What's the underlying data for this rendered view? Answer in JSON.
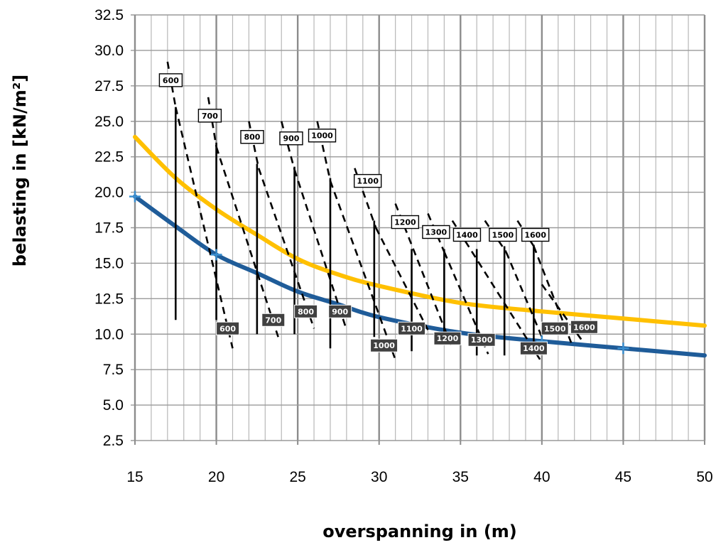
{
  "chart_data": {
    "type": "line",
    "xlabel": "overspanning in (m)",
    "ylabel": "belasting in [kN/m²]",
    "xlim": [
      15,
      50
    ],
    "ylim": [
      2.5,
      32.5
    ],
    "x_ticks": [
      "15",
      "20",
      "25",
      "30",
      "35",
      "40",
      "45",
      "50"
    ],
    "y_ticks": [
      "2.5",
      "5.0",
      "7.5",
      "10.0",
      "12.5",
      "15.0",
      "17.5",
      "20.0",
      "22.5",
      "25.0",
      "27.5",
      "30.0",
      "32.5"
    ],
    "grid": true,
    "colors": {
      "series_1": "#FFC000",
      "series_2": "#1F5C99",
      "markers": "#3A8FD0",
      "diagonals": "#000000"
    },
    "series": [
      {
        "x": [
          15,
          17.5,
          20,
          22.5,
          25,
          27.5,
          30,
          35,
          40,
          45,
          50
        ],
        "values": [
          23.9,
          21.0,
          18.8,
          17.0,
          15.3,
          14.2,
          13.4,
          12.2,
          11.6,
          11.1,
          10.6
        ]
      },
      {
        "x": [
          15,
          17.5,
          20,
          22.5,
          25,
          27.5,
          30,
          35,
          40,
          45,
          50
        ],
        "values": [
          19.7,
          17.6,
          15.6,
          14.3,
          13.0,
          12.1,
          11.2,
          10.1,
          9.5,
          9.0,
          8.5
        ]
      }
    ],
    "markers": [
      {
        "x": 15,
        "y": 19.7
      },
      {
        "x": 20,
        "y": 15.6
      },
      {
        "x": 40,
        "y": 9.5
      },
      {
        "x": 45,
        "y": 9.0
      }
    ],
    "verticals": [
      {
        "x": 17.5,
        "y1": 11.0,
        "y2": 26.0
      },
      {
        "x": 20.0,
        "y1": 11.0,
        "y2": 23.5
      },
      {
        "x": 22.5,
        "y1": 10.0,
        "y2": 22.0
      },
      {
        "x": 24.8,
        "y1": 10.0,
        "y2": 21.8
      },
      {
        "x": 27.0,
        "y1": 9.0,
        "y2": 21.0
      },
      {
        "x": 29.7,
        "y1": 9.8,
        "y2": 18.0
      },
      {
        "x": 32.0,
        "y1": 8.8,
        "y2": 16.0
      },
      {
        "x": 34.0,
        "y1": 9.4,
        "y2": 16.0
      },
      {
        "x": 36.0,
        "y1": 8.5,
        "y2": 16.0
      },
      {
        "x": 37.7,
        "y1": 8.5,
        "y2": 16.2
      },
      {
        "x": 39.5,
        "y1": 8.7,
        "y2": 16.3
      }
    ],
    "dashed_lines": [
      {
        "x1": 17.5,
        "y1": 26.0,
        "x2": 21.0,
        "y2": 9.0
      },
      {
        "x1": 20.0,
        "y1": 23.2,
        "x2": 23.8,
        "y2": 9.8
      },
      {
        "x1": 22.6,
        "y1": 21.7,
        "x2": 26.0,
        "y2": 10.4
      },
      {
        "x1": 24.8,
        "y1": 21.6,
        "x2": 28.0,
        "y2": 10.3
      },
      {
        "x1": 27.0,
        "y1": 20.8,
        "x2": 31.0,
        "y2": 8.2
      },
      {
        "x1": 29.8,
        "y1": 17.5,
        "x2": 33.0,
        "y2": 10.3
      },
      {
        "x1": 31.0,
        "y1": 19.2,
        "x2": 34.5,
        "y2": 9.0
      },
      {
        "x1": 34.0,
        "y1": 15.8,
        "x2": 36.7,
        "y2": 8.6
      },
      {
        "x1": 34.5,
        "y1": 18.0,
        "x2": 40.0,
        "y2": 8.0
      },
      {
        "x1": 37.8,
        "y1": 15.8,
        "x2": 40.0,
        "y2": 9.8
      },
      {
        "x1": 39.5,
        "y1": 16.2,
        "x2": 41.8,
        "y2": 9.4
      },
      {
        "x1": 22.0,
        "y1": 25.0,
        "x2": 22.6,
        "y2": 21.7
      },
      {
        "x1": 24.0,
        "y1": 25.0,
        "x2": 24.8,
        "y2": 21.6
      },
      {
        "x1": 26.2,
        "y1": 25.0,
        "x2": 27.0,
        "y2": 20.8
      },
      {
        "x1": 28.5,
        "y1": 21.7,
        "x2": 29.8,
        "y2": 17.5
      },
      {
        "x1": 36.5,
        "y1": 18.0,
        "x2": 37.8,
        "y2": 15.8
      },
      {
        "x1": 38.5,
        "y1": 18.0,
        "x2": 39.5,
        "y2": 16.2
      },
      {
        "x1": 40.0,
        "y1": 13.5,
        "x2": 42.5,
        "y2": 9.5
      },
      {
        "x1": 33.0,
        "y1": 18.5,
        "x2": 34.0,
        "y2": 15.8
      },
      {
        "x1": 17.0,
        "y1": 29.2,
        "x2": 17.5,
        "y2": 26.0
      },
      {
        "x1": 19.5,
        "y1": 26.7,
        "x2": 20.0,
        "y2": 23.2
      }
    ],
    "top_labels": [
      {
        "text": "600",
        "x": 17.2,
        "y": 27.9
      },
      {
        "text": "700",
        "x": 19.6,
        "y": 25.4
      },
      {
        "text": "800",
        "x": 22.2,
        "y": 23.9
      },
      {
        "text": "900",
        "x": 24.6,
        "y": 23.8
      },
      {
        "text": "1000",
        "x": 26.5,
        "y": 24.0
      },
      {
        "text": "1100",
        "x": 29.3,
        "y": 20.8
      },
      {
        "text": "1200",
        "x": 31.6,
        "y": 17.9
      },
      {
        "text": "1300",
        "x": 33.5,
        "y": 17.2
      },
      {
        "text": "1400",
        "x": 35.4,
        "y": 17.0
      },
      {
        "text": "1500",
        "x": 37.6,
        "y": 17.0
      },
      {
        "text": "1600",
        "x": 39.6,
        "y": 17.0
      }
    ],
    "bottom_labels": [
      {
        "text": "600",
        "x": 20.7,
        "y": 10.4
      },
      {
        "text": "700",
        "x": 23.5,
        "y": 11.0
      },
      {
        "text": "800",
        "x": 25.5,
        "y": 11.6
      },
      {
        "text": "900",
        "x": 27.6,
        "y": 11.6
      },
      {
        "text": "1000",
        "x": 30.3,
        "y": 9.2
      },
      {
        "text": "1100",
        "x": 32.0,
        "y": 10.4
      },
      {
        "text": "1200",
        "x": 34.2,
        "y": 9.7
      },
      {
        "text": "1300",
        "x": 36.3,
        "y": 9.6
      },
      {
        "text": "1400",
        "x": 39.5,
        "y": 9.0
      },
      {
        "text": "1500",
        "x": 40.8,
        "y": 10.4
      },
      {
        "text": "1600",
        "x": 42.6,
        "y": 10.5
      }
    ]
  }
}
